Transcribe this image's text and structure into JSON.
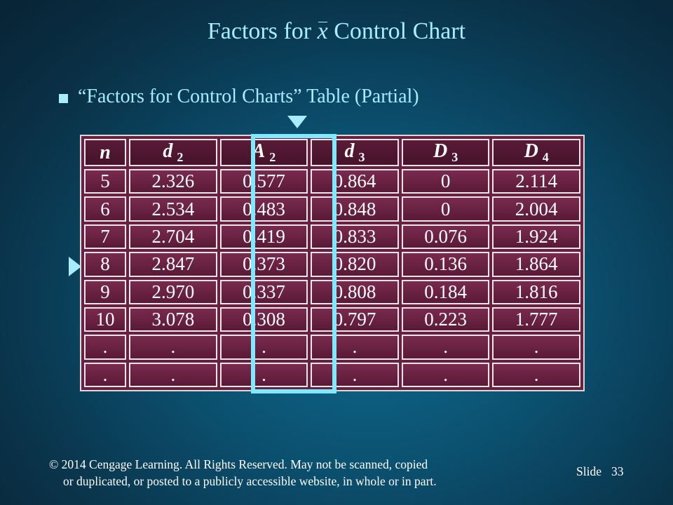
{
  "title": {
    "before": "Factors for ",
    "symbol": "x",
    "after": " Control Chart"
  },
  "bullet": {
    "text": "“Factors for Control Charts” Table (Partial)"
  },
  "table": {
    "headers": [
      {
        "base": "n",
        "sub": ""
      },
      {
        "base": "d",
        "sub": "2"
      },
      {
        "base": "A",
        "sub": "2"
      },
      {
        "base": "d",
        "sub": "3"
      },
      {
        "base": "D",
        "sub": "3"
      },
      {
        "base": "D",
        "sub": "4"
      }
    ],
    "rows": [
      [
        "5",
        "2.326",
        "0.577",
        "0.864",
        "0",
        "2.114"
      ],
      [
        "6",
        "2.534",
        "0.483",
        "0.848",
        "0",
        "2.004"
      ],
      [
        "7",
        "2.704",
        "0.419",
        "0.833",
        "0.076",
        "1.924"
      ],
      [
        "8",
        "2.847",
        "0.373",
        "0.820",
        "0.136",
        "1.864"
      ],
      [
        "9",
        "2.970",
        "0.337",
        "0.808",
        "0.184",
        "1.816"
      ],
      [
        "10",
        "3.078",
        "0.308",
        "0.797",
        "0.223",
        "1.777"
      ],
      [
        ".",
        ".",
        ".",
        ".",
        ".",
        "."
      ],
      [
        ".",
        ".",
        ".",
        ".",
        ".",
        "."
      ]
    ],
    "highlighted_column": "A2",
    "highlighted_row_n": "8"
  },
  "footer": {
    "copyright_line1": "© 2014  Cengage Learning.  All Rights Reserved.  May not be scanned, copied",
    "copyright_line2": "or duplicated, or posted to a publicly accessible website, in whole or in part.",
    "slide_label": "Slide",
    "slide_number": "33"
  },
  "colors": {
    "background": "#0b4f6e",
    "title_text": "#a8ecff",
    "table_cell": "#6a2140",
    "highlight": "#7fe9ff"
  }
}
